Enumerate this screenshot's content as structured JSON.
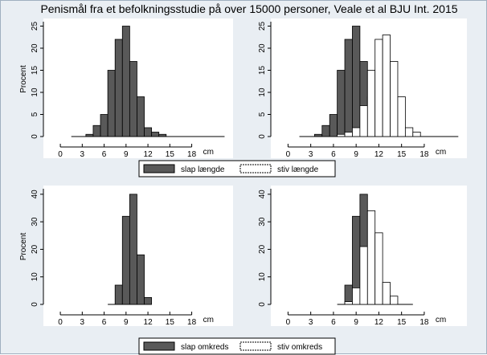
{
  "title": "Penismål fra et befolkningsstudie på over 15000 personer, Veale et al BJU Int. 2015",
  "colors": {
    "background": "#e9eef3",
    "plot_bg": "#ffffff",
    "bar_dark": "#595959",
    "bar_light": "#ffffff",
    "bar_stroke": "#000000"
  },
  "chart_data": [
    {
      "id": "top-left",
      "type": "bar",
      "title": "",
      "xlabel": "cm",
      "ylabel": "Procent",
      "xticks": [
        0,
        3,
        6,
        9,
        12,
        15,
        18
      ],
      "yticks": [
        0,
        5,
        10,
        15,
        20,
        25
      ],
      "xlim": [
        -1,
        23
      ],
      "ylim": [
        0,
        26
      ],
      "grid": false,
      "series": [
        {
          "name": "slap længde",
          "style": "dark",
          "x": [
            2,
            3,
            4,
            5,
            6,
            7,
            8,
            9,
            10,
            11,
            12,
            13,
            14,
            15,
            16,
            17,
            18,
            19,
            20,
            21,
            22
          ],
          "values": [
            0,
            0,
            0.5,
            2.5,
            5,
            15,
            22,
            25,
            17,
            9,
            2,
            1,
            0.5,
            0,
            0,
            0,
            0,
            0,
            0,
            0,
            0
          ]
        }
      ]
    },
    {
      "id": "top-right",
      "type": "bar",
      "title": "",
      "xlabel": "cm",
      "ylabel": "",
      "xticks": [
        0,
        3,
        6,
        9,
        12,
        15,
        18
      ],
      "yticks": [
        0,
        5,
        10,
        15,
        20,
        25
      ],
      "xlim": [
        -1,
        23
      ],
      "ylim": [
        0,
        26
      ],
      "grid": false,
      "series": [
        {
          "name": "slap længde",
          "style": "dark",
          "x": [
            2,
            3,
            4,
            5,
            6,
            7,
            8,
            9,
            10,
            11,
            12,
            13,
            14,
            15,
            16,
            17,
            18,
            19,
            20,
            21,
            22
          ],
          "values": [
            0,
            0,
            0.5,
            2.5,
            5,
            15,
            22,
            25,
            17,
            9,
            2,
            1,
            0.5,
            0,
            0,
            0,
            0,
            0,
            0,
            0,
            0
          ]
        },
        {
          "name": "stiv længde",
          "style": "light",
          "x": [
            7,
            8,
            9,
            10,
            11,
            12,
            13,
            14,
            15,
            16,
            17
          ],
          "values": [
            0.5,
            1,
            2,
            7,
            15,
            22,
            23,
            17,
            9,
            2,
            1
          ]
        }
      ]
    },
    {
      "id": "bottom-left",
      "type": "bar",
      "title": "",
      "xlabel": "cm",
      "ylabel": "Procent",
      "xticks": [
        0,
        3,
        6,
        9,
        12,
        15,
        18
      ],
      "yticks": [
        0,
        10,
        20,
        30,
        40
      ],
      "xlim": [
        -1,
        23
      ],
      "ylim": [
        0,
        42
      ],
      "grid": false,
      "series": [
        {
          "name": "slap omkreds",
          "style": "dark",
          "x": [
            7,
            8,
            9,
            10,
            11,
            12
          ],
          "values": [
            0,
            7,
            32,
            40,
            18,
            2.5
          ]
        }
      ]
    },
    {
      "id": "bottom-right",
      "type": "bar",
      "title": "",
      "xlabel": "cm",
      "ylabel": "",
      "xticks": [
        0,
        3,
        6,
        9,
        12,
        15,
        18
      ],
      "yticks": [
        0,
        10,
        20,
        30,
        40
      ],
      "xlim": [
        -1,
        23
      ],
      "ylim": [
        0,
        42
      ],
      "grid": false,
      "series": [
        {
          "name": "slap omkreds",
          "style": "dark",
          "x": [
            7,
            8,
            9,
            10,
            11,
            12
          ],
          "values": [
            0,
            7,
            32,
            40,
            18,
            2.5
          ]
        },
        {
          "name": "stiv omkreds",
          "style": "light",
          "x": [
            8,
            9,
            10,
            11,
            12,
            13,
            14,
            15,
            16
          ],
          "values": [
            1,
            6,
            21,
            34,
            26,
            8,
            3,
            0,
            0
          ]
        }
      ]
    }
  ],
  "legends": [
    {
      "id": "legend-length",
      "items": [
        {
          "label": "slap længde",
          "style": "dark"
        },
        {
          "label": "stiv længde",
          "style": "light"
        }
      ]
    },
    {
      "id": "legend-girth",
      "items": [
        {
          "label": "slap omkreds",
          "style": "dark"
        },
        {
          "label": "stiv omkreds",
          "style": "light"
        }
      ]
    }
  ]
}
